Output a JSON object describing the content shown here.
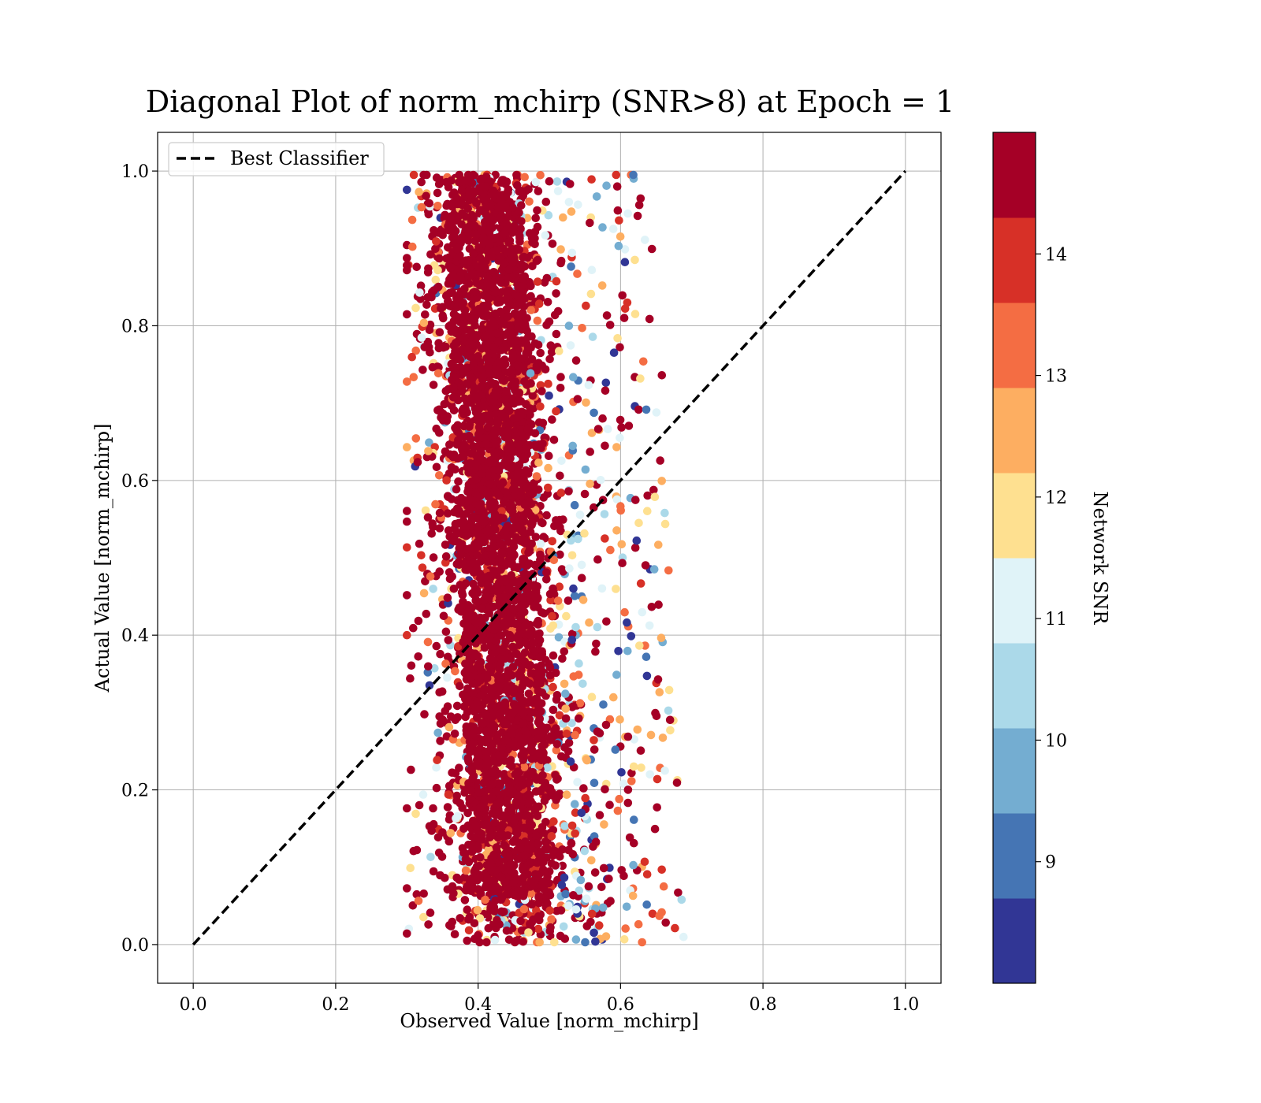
{
  "chart_data": {
    "type": "scatter",
    "title": "Diagonal Plot of norm_mchirp (SNR>8) at Epoch = 1",
    "xlabel": "Observed Value [norm_mchirp]",
    "ylabel": "Actual Value [norm_mchirp]",
    "xlim": [
      -0.05,
      1.05
    ],
    "ylim": [
      -0.05,
      1.05
    ],
    "x_ticks": [
      "0.0",
      "0.2",
      "0.4",
      "0.6",
      "0.8",
      "1.0"
    ],
    "y_ticks": [
      "0.0",
      "0.2",
      "0.4",
      "0.6",
      "0.8",
      "1.0"
    ],
    "grid": true,
    "legend": {
      "placement": "upper-left",
      "entries": [
        {
          "label": "Best Classifier",
          "style": "dashed",
          "color": "#000000"
        }
      ]
    },
    "reference_line": {
      "label": "Best Classifier",
      "from": [
        0.0,
        0.0
      ],
      "to": [
        1.0,
        1.0
      ],
      "style": "dashed"
    },
    "colorbar": {
      "label": "Network SNR",
      "range": [
        8,
        15
      ],
      "tick_labels": [
        "9",
        "10",
        "11",
        "12",
        "13",
        "14"
      ],
      "ticks": [
        9,
        10,
        11,
        12,
        13,
        14
      ],
      "colors": [
        "#313695",
        "#4575b4",
        "#74add1",
        "#abd9e9",
        "#e0f3f8",
        "#fee090",
        "#fdae61",
        "#f46d43",
        "#d73027",
        "#a50026"
      ]
    },
    "scatter_distribution": {
      "description_of_cloud": "dense band of points",
      "observed_center_range": [
        0.32,
        0.56
      ],
      "actual_range": [
        0.0,
        1.0
      ],
      "dominant_color": "#a50026"
    }
  }
}
